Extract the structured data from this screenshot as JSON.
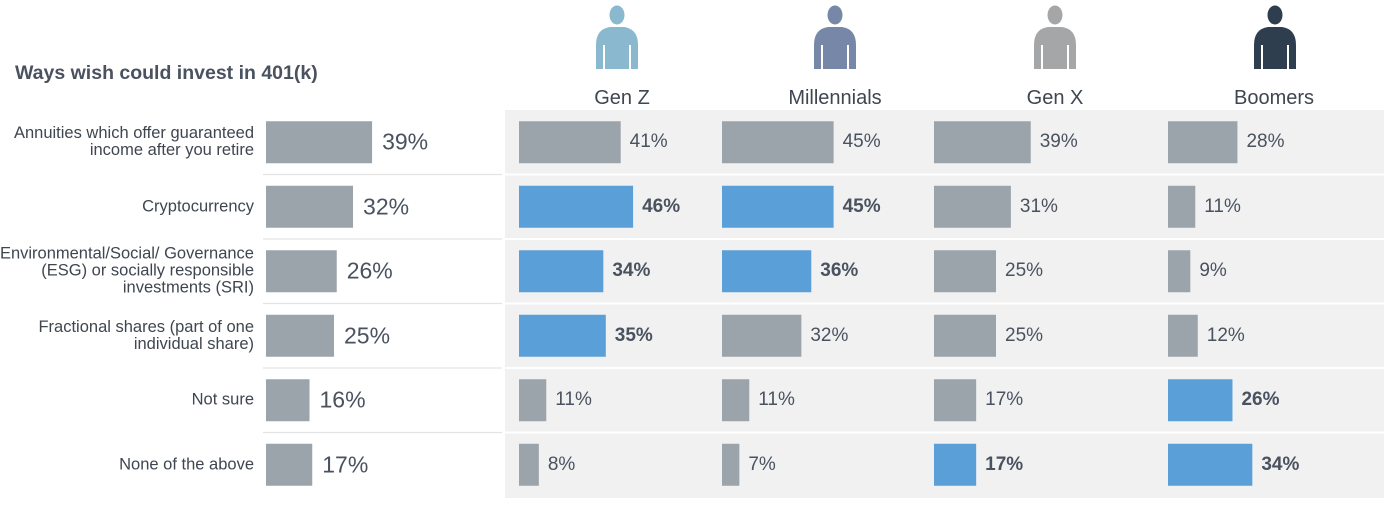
{
  "chart_data": {
    "type": "bar",
    "orientation": "horizontal",
    "title": "Ways wish could invest in 401(k)",
    "categories": [
      "Annuities which offer guaranteed income after you retire",
      "Cryptocurrency",
      "Environmental/Social/ Governance (ESG) or socially responsible investments (SRI)",
      "Fractional shares (part of one individual share)",
      "Not sure",
      "None of the above"
    ],
    "overall": {
      "values": [
        39,
        32,
        26,
        25,
        16,
        17
      ],
      "labels": [
        "39%",
        "32%",
        "26%",
        "25%",
        "16%",
        "17%"
      ]
    },
    "series": [
      {
        "name": "Gen Z",
        "icon": "person-icon",
        "icon_color": "#8ab8cf",
        "values": [
          41,
          46,
          34,
          35,
          11,
          8
        ],
        "labels": [
          "41%",
          "46%",
          "34%",
          "35%",
          "11%",
          "8%"
        ],
        "highlight": [
          false,
          true,
          true,
          true,
          false,
          false
        ]
      },
      {
        "name": "Millennials",
        "icon": "person-icon",
        "icon_color": "#7687a8",
        "values": [
          45,
          45,
          36,
          32,
          11,
          7
        ],
        "labels": [
          "45%",
          "45%",
          "36%",
          "32%",
          "11%",
          "7%"
        ],
        "highlight": [
          false,
          true,
          true,
          false,
          false,
          false
        ]
      },
      {
        "name": "Gen X",
        "icon": "person-icon",
        "icon_color": "#a4a6a8",
        "values": [
          39,
          31,
          25,
          25,
          17,
          17
        ],
        "labels": [
          "39%",
          "31%",
          "25%",
          "25%",
          "17%",
          "17%"
        ],
        "highlight": [
          false,
          false,
          false,
          false,
          false,
          true
        ]
      },
      {
        "name": "Boomers",
        "icon": "person-icon",
        "icon_color": "#2e3e4e",
        "values": [
          28,
          11,
          9,
          12,
          26,
          34
        ],
        "labels": [
          "28%",
          "11%",
          "9%",
          "12%",
          "26%",
          "34%"
        ],
        "highlight": [
          false,
          false,
          false,
          false,
          true,
          true
        ]
      }
    ],
    "colors": {
      "default_bar": "#9ba3ab",
      "highlight_bar": "#5b9fd8",
      "panel_background": "#f1f1f1"
    },
    "xlim": [
      0,
      100
    ],
    "grid": false,
    "legend": "none"
  }
}
